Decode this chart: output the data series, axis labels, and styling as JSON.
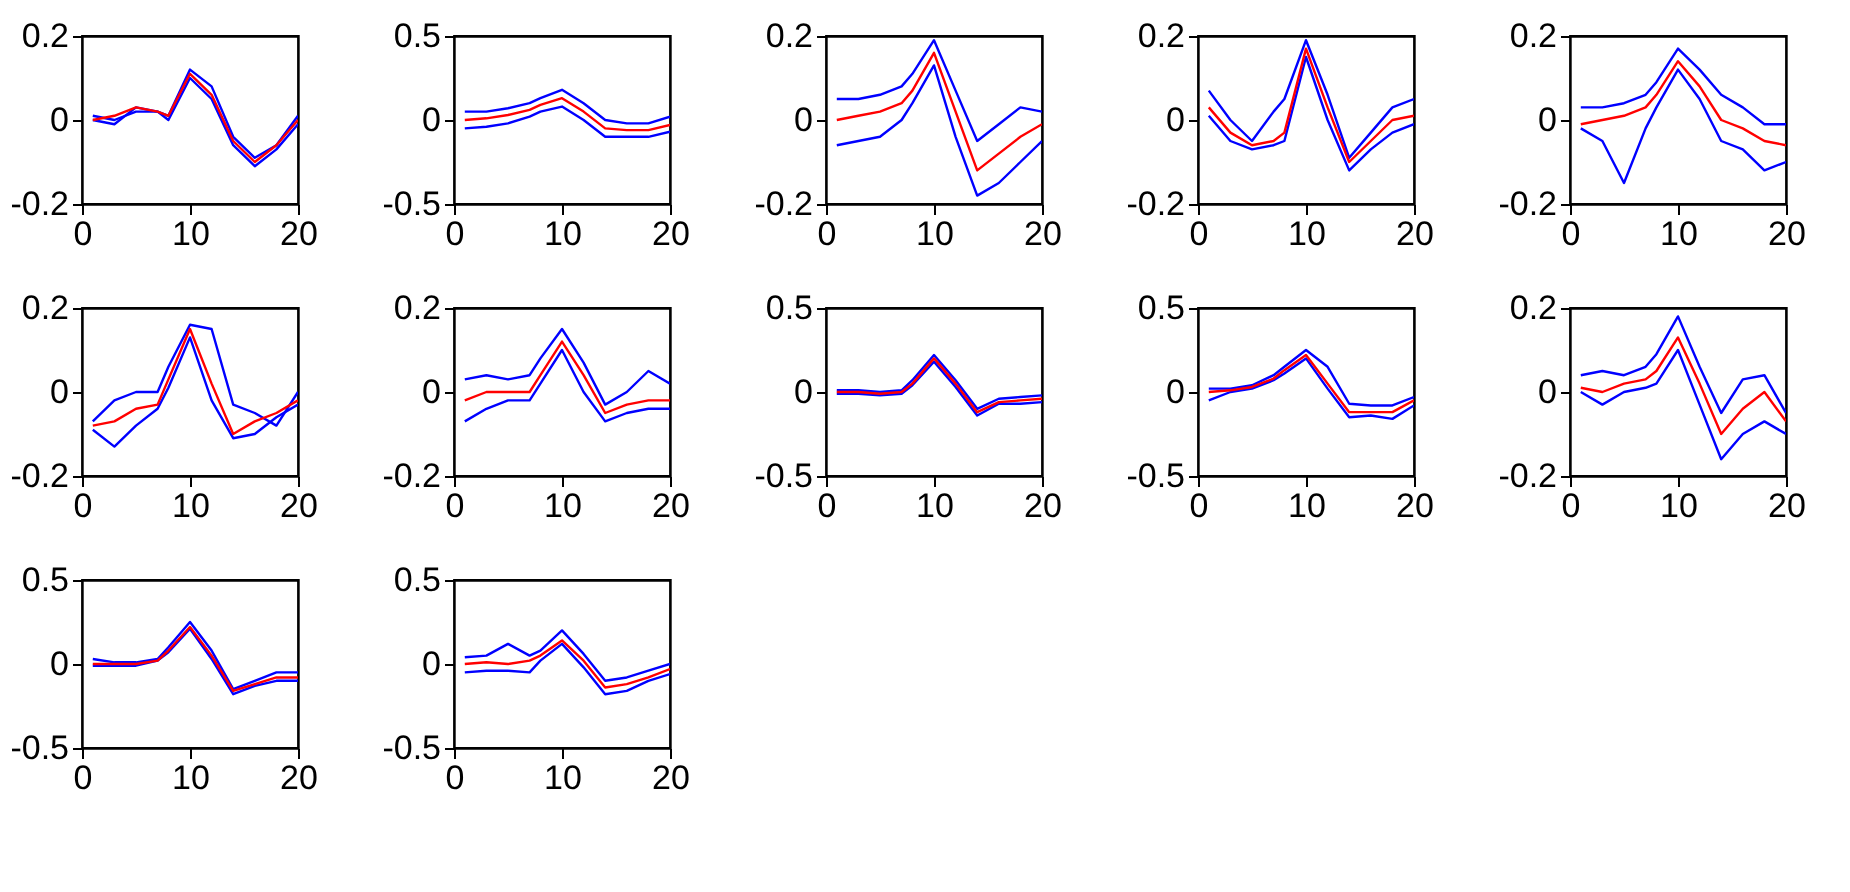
{
  "chart_data": [
    {
      "type": "line",
      "x": [
        1,
        3,
        5,
        7,
        8,
        10,
        12,
        14,
        16,
        18,
        20
      ],
      "xlim": [
        0,
        20
      ],
      "xticks": [
        0,
        10,
        20
      ],
      "ylim": [
        -0.2,
        0.2
      ],
      "yticks": [
        -0.2,
        0,
        0.2
      ],
      "grid": false,
      "series": [
        {
          "color": "#0000ff",
          "values": [
            0,
            -0.01,
            0.03,
            0.02,
            0.01,
            0.12,
            0.08,
            -0.04,
            -0.09,
            -0.06,
            0.01
          ]
        },
        {
          "color": "#0000ff",
          "values": [
            0.01,
            0,
            0.02,
            0.02,
            0,
            0.1,
            0.05,
            -0.06,
            -0.11,
            -0.07,
            -0.01
          ]
        },
        {
          "color": "#ff0000",
          "values": [
            0,
            0.01,
            0.03,
            0.02,
            0.01,
            0.11,
            0.06,
            -0.05,
            -0.1,
            -0.06,
            0
          ]
        }
      ]
    },
    {
      "type": "line",
      "x": [
        1,
        3,
        5,
        7,
        8,
        10,
        12,
        14,
        16,
        18,
        20
      ],
      "xlim": [
        0,
        20
      ],
      "xticks": [
        0,
        10,
        20
      ],
      "ylim": [
        -0.5,
        0.5
      ],
      "yticks": [
        -0.5,
        0,
        0.5
      ],
      "grid": false,
      "series": [
        {
          "color": "#0000ff",
          "values": [
            0.05,
            0.05,
            0.07,
            0.1,
            0.13,
            0.18,
            0.1,
            0,
            -0.02,
            -0.02,
            0.02
          ]
        },
        {
          "color": "#0000ff",
          "values": [
            -0.05,
            -0.04,
            -0.02,
            0.02,
            0.05,
            0.08,
            0.0,
            -0.1,
            -0.1,
            -0.1,
            -0.07
          ]
        },
        {
          "color": "#ff0000",
          "values": [
            0,
            0.01,
            0.03,
            0.06,
            0.09,
            0.13,
            0.05,
            -0.05,
            -0.06,
            -0.06,
            -0.03
          ]
        }
      ]
    },
    {
      "type": "line",
      "x": [
        1,
        3,
        5,
        7,
        8,
        10,
        12,
        14,
        16,
        18,
        20
      ],
      "xlim": [
        0,
        20
      ],
      "xticks": [
        0,
        10,
        20
      ],
      "ylim": [
        -0.2,
        0.2
      ],
      "yticks": [
        -0.2,
        0,
        0.2
      ],
      "grid": false,
      "series": [
        {
          "color": "#0000ff",
          "values": [
            0.05,
            0.05,
            0.06,
            0.08,
            0.11,
            0.19,
            0.07,
            -0.05,
            -0.01,
            0.03,
            0.02
          ]
        },
        {
          "color": "#0000ff",
          "values": [
            -0.06,
            -0.05,
            -0.04,
            0,
            0.04,
            0.13,
            -0.04,
            -0.18,
            -0.15,
            -0.1,
            -0.05
          ]
        },
        {
          "color": "#ff0000",
          "values": [
            0,
            0.01,
            0.02,
            0.04,
            0.07,
            0.16,
            0.02,
            -0.12,
            -0.08,
            -0.04,
            -0.01
          ]
        }
      ]
    },
    {
      "type": "line",
      "x": [
        1,
        3,
        5,
        7,
        8,
        10,
        12,
        14,
        16,
        18,
        20
      ],
      "xlim": [
        0,
        20
      ],
      "xticks": [
        0,
        10,
        20
      ],
      "ylim": [
        -0.2,
        0.2
      ],
      "yticks": [
        -0.2,
        0,
        0.2
      ],
      "grid": false,
      "series": [
        {
          "color": "#0000ff",
          "values": [
            0.07,
            0,
            -0.05,
            0.02,
            0.05,
            0.19,
            0.06,
            -0.09,
            -0.03,
            0.03,
            0.05
          ]
        },
        {
          "color": "#0000ff",
          "values": [
            0.01,
            -0.05,
            -0.07,
            -0.06,
            -0.05,
            0.15,
            0.0,
            -0.12,
            -0.07,
            -0.03,
            -0.01
          ]
        },
        {
          "color": "#ff0000",
          "values": [
            0.03,
            -0.03,
            -0.06,
            -0.05,
            -0.03,
            0.17,
            0.03,
            -0.1,
            -0.05,
            0,
            0.01
          ]
        }
      ]
    },
    {
      "type": "line",
      "x": [
        1,
        3,
        5,
        7,
        8,
        10,
        12,
        14,
        16,
        18,
        20
      ],
      "xlim": [
        0,
        20
      ],
      "xticks": [
        0,
        10,
        20
      ],
      "ylim": [
        -0.2,
        0.2
      ],
      "yticks": [
        -0.2,
        0,
        0.2
      ],
      "grid": false,
      "series": [
        {
          "color": "#0000ff",
          "values": [
            0.03,
            0.03,
            0.04,
            0.06,
            0.09,
            0.17,
            0.12,
            0.06,
            0.03,
            -0.01,
            -0.01
          ]
        },
        {
          "color": "#0000ff",
          "values": [
            -0.02,
            -0.05,
            -0.15,
            -0.02,
            0.03,
            0.12,
            0.05,
            -0.05,
            -0.07,
            -0.12,
            -0.1
          ]
        },
        {
          "color": "#ff0000",
          "values": [
            -0.01,
            0,
            0.01,
            0.03,
            0.06,
            0.14,
            0.08,
            0,
            -0.02,
            -0.05,
            -0.06
          ]
        }
      ]
    },
    {
      "type": "line",
      "x": [
        1,
        3,
        5,
        7,
        8,
        10,
        12,
        14,
        16,
        18,
        20
      ],
      "xlim": [
        0,
        20
      ],
      "xticks": [
        0,
        10,
        20
      ],
      "ylim": [
        -0.2,
        0.2
      ],
      "yticks": [
        -0.2,
        0,
        0.2
      ],
      "grid": false,
      "series": [
        {
          "color": "#0000ff",
          "values": [
            -0.07,
            -0.02,
            0,
            0,
            0.06,
            0.16,
            0.15,
            -0.03,
            -0.05,
            -0.08,
            0
          ]
        },
        {
          "color": "#0000ff",
          "values": [
            -0.09,
            -0.13,
            -0.08,
            -0.04,
            0.01,
            0.13,
            -0.02,
            -0.11,
            -0.1,
            -0.06,
            -0.03
          ]
        },
        {
          "color": "#ff0000",
          "values": [
            -0.08,
            -0.07,
            -0.04,
            -0.03,
            0.03,
            0.15,
            0.02,
            -0.1,
            -0.07,
            -0.05,
            -0.02
          ]
        }
      ]
    },
    {
      "type": "line",
      "x": [
        1,
        3,
        5,
        7,
        8,
        10,
        12,
        14,
        16,
        18,
        20
      ],
      "xlim": [
        0,
        20
      ],
      "xticks": [
        0,
        10,
        20
      ],
      "ylim": [
        -0.2,
        0.2
      ],
      "yticks": [
        -0.2,
        0,
        0.2
      ],
      "grid": false,
      "series": [
        {
          "color": "#0000ff",
          "values": [
            0.03,
            0.04,
            0.03,
            0.04,
            0.08,
            0.15,
            0.07,
            -0.03,
            0,
            0.05,
            0.02
          ]
        },
        {
          "color": "#0000ff",
          "values": [
            -0.07,
            -0.04,
            -0.02,
            -0.02,
            0.02,
            0.1,
            0.0,
            -0.07,
            -0.05,
            -0.04,
            -0.04
          ]
        },
        {
          "color": "#ff0000",
          "values": [
            -0.02,
            0,
            0,
            0,
            0.04,
            0.12,
            0.04,
            -0.05,
            -0.03,
            -0.02,
            -0.02
          ]
        }
      ]
    },
    {
      "type": "line",
      "x": [
        1,
        3,
        5,
        7,
        8,
        10,
        12,
        14,
        16,
        18,
        20
      ],
      "xlim": [
        0,
        20
      ],
      "xticks": [
        0,
        10,
        20
      ],
      "ylim": [
        -0.5,
        0.5
      ],
      "yticks": [
        -0.5,
        0,
        0.5
      ],
      "grid": false,
      "series": [
        {
          "color": "#0000ff",
          "values": [
            0.01,
            0.01,
            0,
            0.01,
            0.07,
            0.22,
            0.07,
            -0.1,
            -0.04,
            -0.03,
            -0.02
          ]
        },
        {
          "color": "#0000ff",
          "values": [
            -0.01,
            -0.01,
            -0.02,
            -0.01,
            0.04,
            0.18,
            0.03,
            -0.14,
            -0.07,
            -0.07,
            -0.06
          ]
        },
        {
          "color": "#ff0000",
          "values": [
            0,
            0,
            -0.01,
            0,
            0.05,
            0.2,
            0.05,
            -0.12,
            -0.06,
            -0.05,
            -0.04
          ]
        }
      ]
    },
    {
      "type": "line",
      "x": [
        1,
        3,
        5,
        7,
        8,
        10,
        12,
        14,
        16,
        18,
        20
      ],
      "xlim": [
        0,
        20
      ],
      "xticks": [
        0,
        10,
        20
      ],
      "ylim": [
        -0.5,
        0.5
      ],
      "yticks": [
        -0.5,
        0,
        0.5
      ],
      "grid": false,
      "series": [
        {
          "color": "#0000ff",
          "values": [
            0.02,
            0.02,
            0.04,
            0.1,
            0.15,
            0.25,
            0.15,
            -0.07,
            -0.08,
            -0.08,
            -0.03
          ]
        },
        {
          "color": "#0000ff",
          "values": [
            -0.05,
            0,
            0.02,
            0.07,
            0.11,
            0.2,
            0.02,
            -0.15,
            -0.14,
            -0.16,
            -0.08
          ]
        },
        {
          "color": "#ff0000",
          "values": [
            0,
            0.01,
            0.03,
            0.08,
            0.13,
            0.22,
            0.05,
            -0.12,
            -0.12,
            -0.12,
            -0.05
          ]
        }
      ]
    },
    {
      "type": "line",
      "x": [
        1,
        3,
        5,
        7,
        8,
        10,
        12,
        14,
        16,
        18,
        20
      ],
      "xlim": [
        0,
        20
      ],
      "xticks": [
        0,
        10,
        20
      ],
      "ylim": [
        -0.2,
        0.2
      ],
      "yticks": [
        -0.2,
        0,
        0.2
      ],
      "grid": false,
      "series": [
        {
          "color": "#0000ff",
          "values": [
            0.04,
            0.05,
            0.04,
            0.06,
            0.09,
            0.18,
            0.06,
            -0.05,
            0.03,
            0.04,
            -0.05
          ]
        },
        {
          "color": "#0000ff",
          "values": [
            0,
            -0.03,
            0,
            0.01,
            0.02,
            0.1,
            -0.03,
            -0.16,
            -0.1,
            -0.07,
            -0.1
          ]
        },
        {
          "color": "#ff0000",
          "values": [
            0.01,
            0,
            0.02,
            0.03,
            0.05,
            0.13,
            0.02,
            -0.1,
            -0.04,
            0,
            -0.07
          ]
        }
      ]
    },
    {
      "type": "line",
      "x": [
        1,
        3,
        5,
        7,
        8,
        10,
        12,
        14,
        16,
        18,
        20
      ],
      "xlim": [
        0,
        20
      ],
      "xticks": [
        0,
        10,
        20
      ],
      "ylim": [
        -0.5,
        0.5
      ],
      "yticks": [
        -0.5,
        0,
        0.5
      ],
      "grid": false,
      "series": [
        {
          "color": "#0000ff",
          "values": [
            0.03,
            0.01,
            0.01,
            0.03,
            0.1,
            0.25,
            0.08,
            -0.15,
            -0.1,
            -0.05,
            -0.05
          ]
        },
        {
          "color": "#0000ff",
          "values": [
            -0.01,
            -0.01,
            -0.01,
            0.02,
            0.07,
            0.21,
            0.03,
            -0.18,
            -0.13,
            -0.1,
            -0.1
          ]
        },
        {
          "color": "#ff0000",
          "values": [
            0,
            0,
            0,
            0.02,
            0.08,
            0.22,
            0.05,
            -0.16,
            -0.12,
            -0.08,
            -0.08
          ]
        }
      ]
    },
    {
      "type": "line",
      "x": [
        1,
        3,
        5,
        7,
        8,
        10,
        12,
        14,
        16,
        18,
        20
      ],
      "xlim": [
        0,
        20
      ],
      "xticks": [
        0,
        10,
        20
      ],
      "ylim": [
        -0.5,
        0.5
      ],
      "yticks": [
        -0.5,
        0,
        0.5
      ],
      "grid": false,
      "series": [
        {
          "color": "#0000ff",
          "values": [
            0.04,
            0.05,
            0.12,
            0.05,
            0.08,
            0.2,
            0.06,
            -0.1,
            -0.08,
            -0.04,
            0
          ]
        },
        {
          "color": "#0000ff",
          "values": [
            -0.05,
            -0.04,
            -0.04,
            -0.05,
            0.02,
            0.12,
            -0.02,
            -0.18,
            -0.16,
            -0.1,
            -0.06
          ]
        },
        {
          "color": "#ff0000",
          "values": [
            0,
            0.01,
            0,
            0.02,
            0.05,
            0.14,
            0.02,
            -0.14,
            -0.12,
            -0.08,
            -0.03
          ]
        }
      ]
    }
  ]
}
